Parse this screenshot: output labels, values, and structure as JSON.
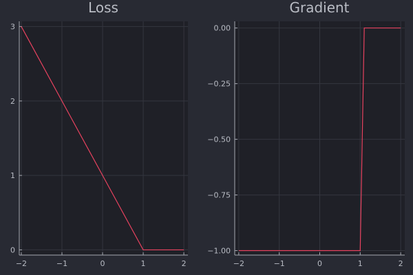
{
  "colors": {
    "background": "#282a33",
    "plot_background": "#1f2027",
    "series": "#e8425f",
    "text": "#b9bcc4",
    "grid": "#34363f",
    "axis": "#a6a9b2"
  },
  "chart_data": [
    {
      "type": "line",
      "title": "Loss",
      "xlabel": "",
      "ylabel": "",
      "xlim": [
        -2.05,
        2.1
      ],
      "ylim": [
        -0.07,
        3.07
      ],
      "grid": true,
      "legend": "none",
      "x_ticks": [
        -2,
        -1,
        0,
        1,
        2
      ],
      "x_tick_labels": [
        "−2",
        "−1",
        "0",
        "1",
        "2"
      ],
      "y_ticks": [
        0,
        1,
        2,
        3
      ],
      "y_tick_labels": [
        "0",
        "1",
        "2",
        "3"
      ],
      "series": [
        {
          "x": [
            -2,
            -1,
            0,
            1,
            1.1,
            2
          ],
          "y": [
            3,
            2,
            1,
            0,
            0,
            0
          ]
        }
      ]
    },
    {
      "type": "line",
      "title": "Gradient",
      "xlabel": "",
      "ylabel": "",
      "xlim": [
        -2.1,
        2.1
      ],
      "ylim": [
        -1.02,
        0.03
      ],
      "grid": true,
      "legend": "none",
      "x_ticks": [
        -2,
        -1,
        0,
        1,
        2
      ],
      "x_tick_labels": [
        "−2",
        "−1",
        "0",
        "1",
        "2"
      ],
      "y_ticks": [
        0,
        -0.25,
        -0.5,
        -0.75,
        -1
      ],
      "y_tick_labels": [
        "0.00",
        "−0.25",
        "−0.50",
        "−0.75",
        "−1.00"
      ],
      "series": [
        {
          "x": [
            -2,
            1,
            1.1,
            2
          ],
          "y": [
            -1,
            -1,
            0,
            0
          ]
        }
      ]
    }
  ]
}
